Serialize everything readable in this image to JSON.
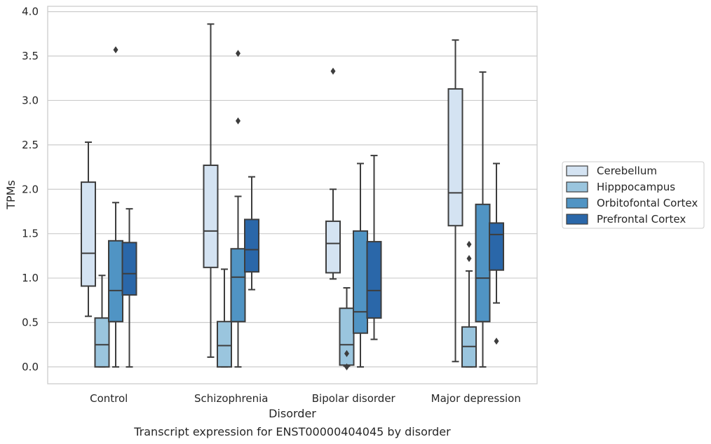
{
  "chart_data": {
    "type": "box",
    "xlabel": "Disorder",
    "ylabel": "TPMs",
    "caption": "Transcript expression for ENST00000404045 by disorder",
    "ylim": [
      -0.19,
      4.06
    ],
    "yticks": [
      "0.0",
      "0.5",
      "1.0",
      "1.5",
      "2.0",
      "2.5",
      "3.0",
      "3.5",
      "4.0"
    ],
    "grid": "horizontal",
    "legend_position": "right",
    "categories": [
      "Control",
      "Schizophrenia",
      "Bipolar disorder",
      "Major depression"
    ],
    "series": [
      {
        "name": "Cerebellum",
        "color": "#d4e3f2",
        "boxes": [
          {
            "min": 0.57,
            "q1": 0.91,
            "median": 1.28,
            "q3": 2.08,
            "max": 2.53,
            "outliers": []
          },
          {
            "min": 0.11,
            "q1": 1.12,
            "median": 1.53,
            "q3": 2.27,
            "max": 3.86,
            "outliers": []
          },
          {
            "min": 0.99,
            "q1": 1.06,
            "median": 1.39,
            "q3": 1.64,
            "max": 2.0,
            "outliers": [
              3.33
            ]
          },
          {
            "min": 0.06,
            "q1": 1.59,
            "median": 1.96,
            "q3": 3.13,
            "max": 3.68,
            "outliers": []
          }
        ]
      },
      {
        "name": "Hipppocampus",
        "color": "#9ac5de",
        "boxes": [
          {
            "min": 0.0,
            "q1": 0.0,
            "median": 0.25,
            "q3": 0.55,
            "max": 1.03,
            "outliers": []
          },
          {
            "min": 0.0,
            "q1": 0.0,
            "median": 0.24,
            "q3": 0.51,
            "max": 1.1,
            "outliers": []
          },
          {
            "min": 0.01,
            "q1": 0.02,
            "median": 0.25,
            "q3": 0.66,
            "max": 0.89,
            "outliers": [
              0.15,
              0.0
            ]
          },
          {
            "min": 0.0,
            "q1": 0.0,
            "median": 0.23,
            "q3": 0.45,
            "max": 1.08,
            "outliers": [
              1.38,
              1.22
            ]
          }
        ]
      },
      {
        "name": "Orbitofontal Cortex",
        "color": "#5094c4",
        "boxes": [
          {
            "min": 0.0,
            "q1": 0.51,
            "median": 0.86,
            "q3": 1.42,
            "max": 1.85,
            "outliers": [
              3.57
            ]
          },
          {
            "min": 0.0,
            "q1": 0.51,
            "median": 1.01,
            "q3": 1.33,
            "max": 1.92,
            "outliers": [
              3.53,
              2.77
            ]
          },
          {
            "min": 0.0,
            "q1": 0.38,
            "median": 0.62,
            "q3": 1.53,
            "max": 2.29,
            "outliers": []
          },
          {
            "min": 0.0,
            "q1": 0.51,
            "median": 1.0,
            "q3": 1.83,
            "max": 3.32,
            "outliers": []
          }
        ]
      },
      {
        "name": "Prefrontal Cortex",
        "color": "#2a67a9",
        "boxes": [
          {
            "min": 0.0,
            "q1": 0.81,
            "median": 1.05,
            "q3": 1.4,
            "max": 1.78,
            "outliers": []
          },
          {
            "min": 0.87,
            "q1": 1.07,
            "median": 1.32,
            "q3": 1.66,
            "max": 2.14,
            "outliers": []
          },
          {
            "min": 0.31,
            "q1": 0.55,
            "median": 0.86,
            "q3": 1.41,
            "max": 2.38,
            "outliers": []
          },
          {
            "min": 0.72,
            "q1": 1.09,
            "median": 1.49,
            "q3": 1.62,
            "max": 2.29,
            "outliers": [
              0.29
            ]
          }
        ]
      }
    ]
  }
}
